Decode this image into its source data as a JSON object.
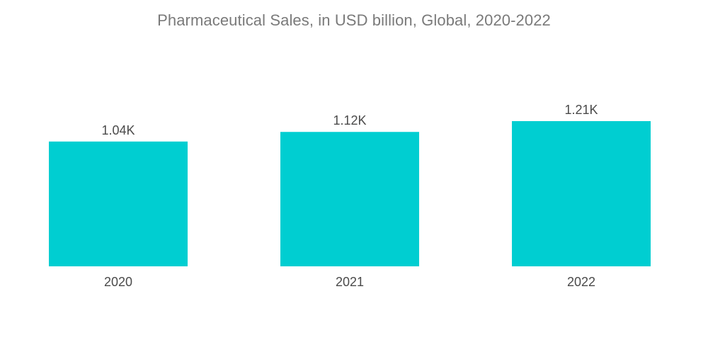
{
  "chart_data": {
    "type": "bar",
    "title": "Pharmaceutical Sales, in USD billion, Global, 2020-2022",
    "categories": [
      "2020",
      "2021",
      "2022"
    ],
    "values": [
      1040,
      1120,
      1210
    ],
    "value_labels": [
      "1.04K",
      "1.12K",
      "1.21K"
    ],
    "xlabel": "",
    "ylabel": "",
    "ylim": [
      0,
      1210
    ],
    "grid": false,
    "legend": "none",
    "bar_color": "#00CED1"
  }
}
